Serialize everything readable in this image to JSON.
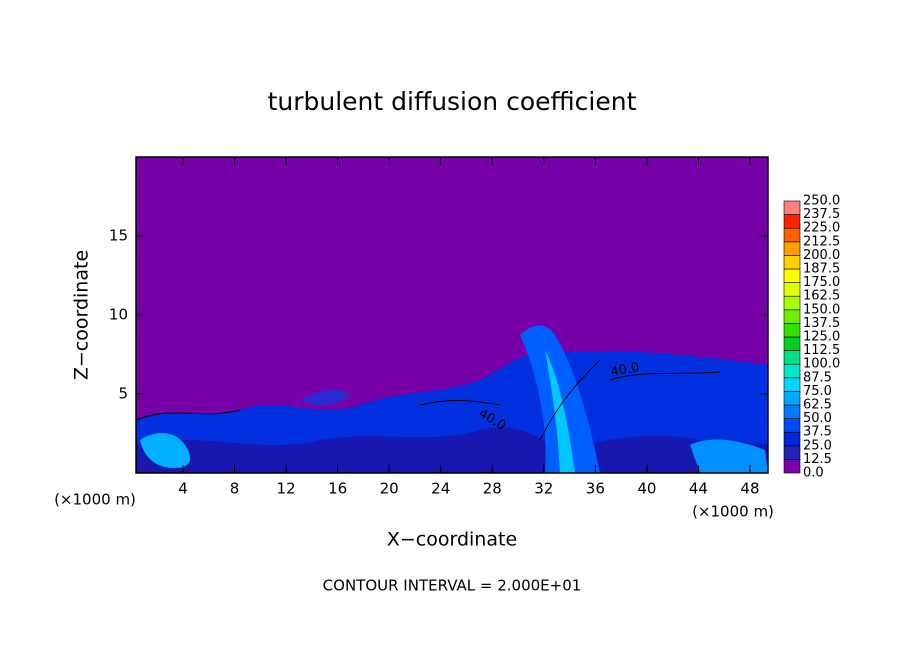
{
  "chart_data": {
    "type": "contour",
    "title": "turbulent diffusion coefficient",
    "x_label": "X−coordinate",
    "y_label": "Z−coordinate",
    "x_unit_label": "(×1000 m)",
    "y_unit_label": "(×1000 m)",
    "annotation": "CONTOUR INTERVAL = 2.000E+01",
    "contour_labels": [
      "40.0",
      "40.0"
    ],
    "xlim": [
      0.35,
      49.4
    ],
    "xticks": [
      4,
      8,
      12,
      16,
      20,
      24,
      28,
      32,
      36,
      40,
      44,
      48
    ],
    "ylim": [
      0,
      20
    ],
    "yticks": [
      5,
      10,
      15
    ],
    "colorbar": {
      "levels": [
        {
          "value": 0,
          "label": "0.0"
        },
        {
          "value": 12.5,
          "label": "12.5"
        },
        {
          "value": 25,
          "label": "25.0"
        },
        {
          "value": 37.5,
          "label": "37.5"
        },
        {
          "value": 50,
          "label": "50.0"
        },
        {
          "value": 62.5,
          "label": "62.5"
        },
        {
          "value": 75,
          "label": "75.0"
        },
        {
          "value": 87.5,
          "label": "87.5"
        },
        {
          "value": 100,
          "label": "100.0"
        },
        {
          "value": 112.5,
          "label": "112.5"
        },
        {
          "value": 125,
          "label": "125.0"
        },
        {
          "value": 137.5,
          "label": "137.5"
        },
        {
          "value": 150,
          "label": "150.0"
        },
        {
          "value": 162.5,
          "label": "162.5"
        },
        {
          "value": 175,
          "label": "175.0"
        },
        {
          "value": 187.5,
          "label": "187.5"
        },
        {
          "value": 200,
          "label": "200.0"
        },
        {
          "value": 212.5,
          "label": "212.5"
        },
        {
          "value": 225,
          "label": "225.0"
        },
        {
          "value": 237.5,
          "label": "237.5"
        },
        {
          "value": 250,
          "label": "250.0"
        }
      ],
      "colors": [
        "#7800a8",
        "#2222b8",
        "#0028d8",
        "#0048ff",
        "#0078ff",
        "#00a8ff",
        "#00d8ff",
        "#00e8c8",
        "#00e088",
        "#00d020",
        "#30e000",
        "#70f000",
        "#a8ff00",
        "#e0ff00",
        "#ffff00",
        "#ffd000",
        "#ffa000",
        "#ff6000",
        "#ff2000",
        "#ff8080"
      ]
    }
  }
}
